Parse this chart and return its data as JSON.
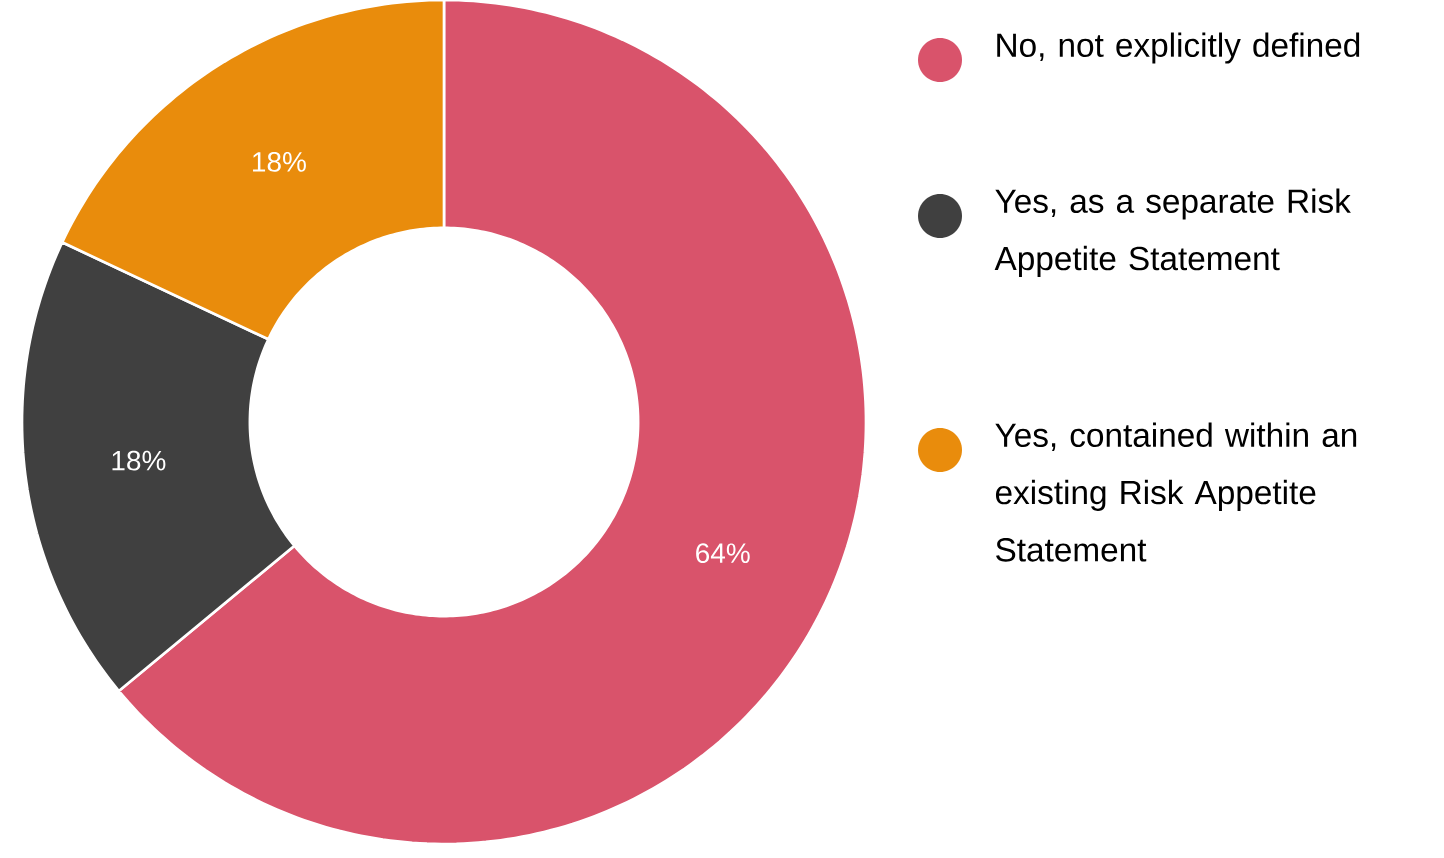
{
  "chart_data": {
    "type": "donut",
    "categories": [
      "No, not explicitly defined",
      "Yes, as a separate Risk Appetite Statement",
      "Yes, contained within an existing Risk Appetite Statement"
    ],
    "values": [
      64,
      18,
      18
    ],
    "colors": [
      "#d9536b",
      "#404040",
      "#e98c0c"
    ],
    "value_labels": [
      "64%",
      "18%",
      "18%"
    ],
    "legend": "right"
  }
}
